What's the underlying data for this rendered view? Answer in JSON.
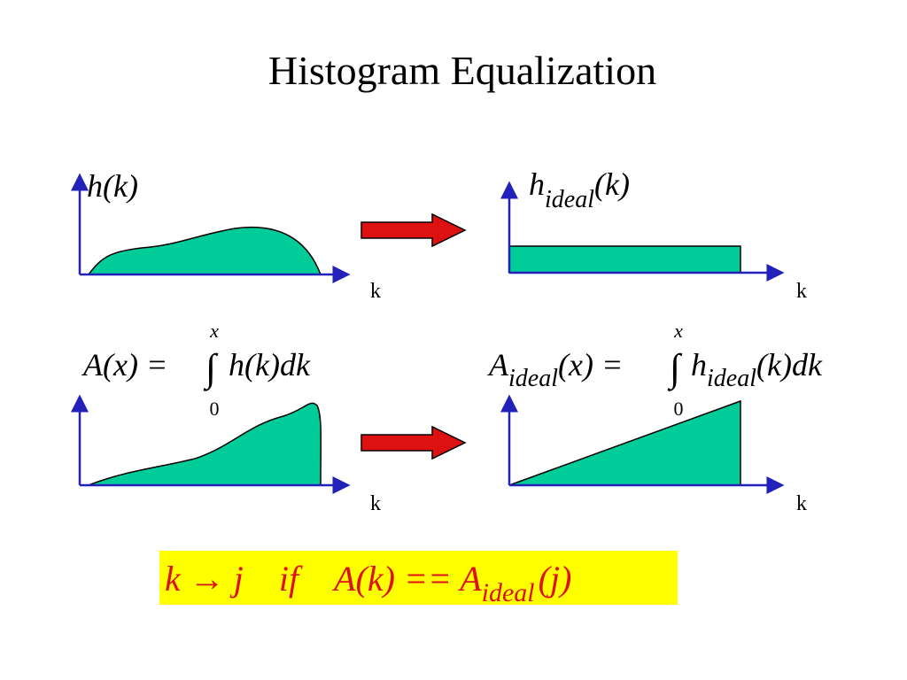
{
  "title": "Histogram Equalization",
  "panels": [
    {
      "label": {
        "text": "h(k)"
      },
      "axis_label": "k"
    },
    {
      "label": {
        "main": "h",
        "sub": "ideal",
        "arg": "(k)"
      },
      "axis_label": "k"
    },
    {
      "formula": {
        "lhs": "A(x) =",
        "integral": "∫",
        "upper": "x",
        "lower": "0",
        "integrand": "h(k)dk"
      },
      "axis_label": "k"
    },
    {
      "formula": {
        "lhs_main": "A",
        "lhs_sub": "ideal",
        "lhs_arg": "(x) =",
        "integral": "∫",
        "upper": "x",
        "lower": "0",
        "integrand_main": "h",
        "integrand_sub": "ideal",
        "integrand_arg": "(k)dk"
      },
      "axis_label": "k"
    }
  ],
  "rule": {
    "map": "k → j",
    "cond": "if",
    "lhs": "A(k) == A",
    "sub": "ideal",
    "arg": "(j)"
  }
}
